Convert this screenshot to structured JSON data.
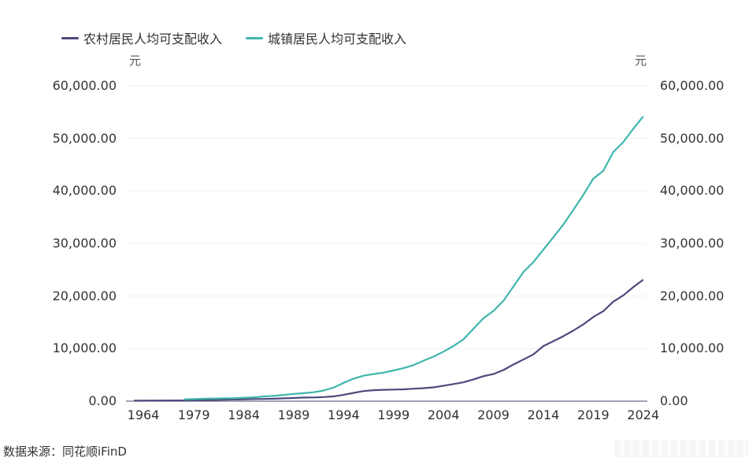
{
  "legend": {
    "rural_label": "农村居民人均可支配收入",
    "urban_label": "城镇居民人均可支配收入"
  },
  "colors": {
    "rural": "#4b4a7c",
    "urban": "#3fb6ab",
    "grid": "#f0f0f0",
    "axis": "#6b6b8a"
  },
  "axes": {
    "left_unit": "元",
    "right_unit": "元",
    "y_ticks": [
      "60,000.00",
      "50,000.00",
      "40,000.00",
      "30,000.00",
      "20,000.00",
      "10,000.00",
      "0.00"
    ],
    "x_ticks": [
      "1964",
      "1979",
      "1984",
      "1989",
      "1994",
      "1999",
      "2004",
      "2009",
      "2014",
      "2019",
      "2024"
    ]
  },
  "source": "数据来源：同花顺iFinD",
  "chart_data": {
    "type": "line",
    "title": "",
    "xlabel": "",
    "ylabel": "元",
    "ylim": [
      0,
      60000
    ],
    "grid": true,
    "legend_position": "top-left",
    "dual_y_axis": true,
    "x": [
      1964,
      1978,
      1979,
      1980,
      1981,
      1982,
      1983,
      1984,
      1985,
      1986,
      1987,
      1988,
      1989,
      1990,
      1991,
      1992,
      1993,
      1994,
      1995,
      1996,
      1997,
      1998,
      1999,
      2000,
      2001,
      2002,
      2003,
      2004,
      2005,
      2006,
      2007,
      2008,
      2009,
      2010,
      2011,
      2012,
      2013,
      2014,
      2015,
      2016,
      2017,
      2018,
      2019,
      2020,
      2021,
      2022,
      2023,
      2024
    ],
    "series": [
      {
        "name": "农村居民人均可支配收入",
        "color": "#4b4a7c",
        "values": [
          102,
          134,
          160,
          191,
          223,
          270,
          310,
          355,
          398,
          424,
          463,
          545,
          602,
          686,
          709,
          784,
          922,
          1221,
          1578,
          1926,
          2090,
          2162,
          2210,
          2253,
          2366,
          2476,
          2622,
          2936,
          3255,
          3587,
          4140,
          4761,
          5153,
          5919,
          6977,
          7917,
          8896,
          10489,
          11422,
          12363,
          13432,
          14617,
          16021,
          17131,
          18931,
          20133,
          21691,
          23119
        ]
      },
      {
        "name": "城镇居民人均可支配收入",
        "color": "#3fb6ab",
        "values": [
          null,
          343,
          405,
          478,
          500,
          535,
          565,
          652,
          739,
          900,
          1002,
          1181,
          1376,
          1510,
          1701,
          2027,
          2577,
          3496,
          4283,
          4839,
          5160,
          5425,
          5854,
          6280,
          6860,
          7703,
          8472,
          9422,
          10493,
          11759,
          13786,
          15781,
          17175,
          19109,
          21810,
          24565,
          26467,
          28844,
          31195,
          33616,
          36396,
          39251,
          42359,
          43834,
          47412,
          49283,
          51821,
          54188
        ]
      }
    ]
  }
}
